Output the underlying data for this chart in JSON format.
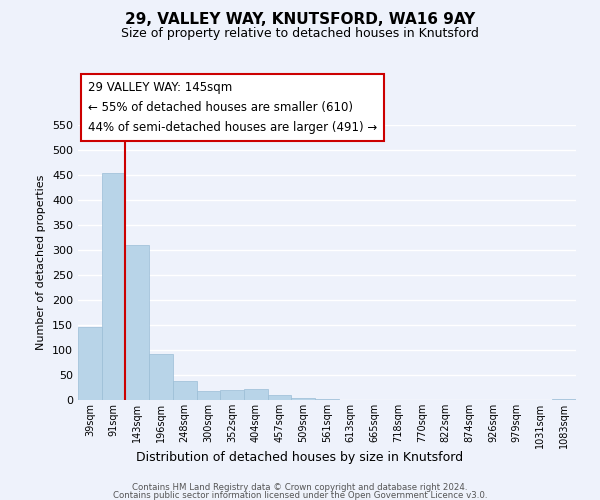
{
  "title": "29, VALLEY WAY, KNUTSFORD, WA16 9AY",
  "subtitle": "Size of property relative to detached houses in Knutsford",
  "xlabel": "Distribution of detached houses by size in Knutsford",
  "ylabel": "Number of detached properties",
  "categories": [
    "39sqm",
    "91sqm",
    "143sqm",
    "196sqm",
    "248sqm",
    "300sqm",
    "352sqm",
    "404sqm",
    "457sqm",
    "509sqm",
    "561sqm",
    "613sqm",
    "665sqm",
    "718sqm",
    "770sqm",
    "822sqm",
    "874sqm",
    "926sqm",
    "979sqm",
    "1031sqm",
    "1083sqm"
  ],
  "values": [
    147,
    455,
    310,
    93,
    38,
    18,
    20,
    22,
    10,
    5,
    2,
    1,
    0,
    0,
    0,
    0,
    0,
    0,
    0,
    0,
    2
  ],
  "bar_color": "#b8d4e8",
  "bar_edge_color": "#9bbdd6",
  "marker_color": "#cc0000",
  "annotation_title": "29 VALLEY WAY: 145sqm",
  "annotation_line1": "← 55% of detached houses are smaller (610)",
  "annotation_line2": "44% of semi-detached houses are larger (491) →",
  "annotation_box_color": "#ffffff",
  "annotation_box_edge": "#cc0000",
  "footer_line1": "Contains HM Land Registry data © Crown copyright and database right 2024.",
  "footer_line2": "Contains public sector information licensed under the Open Government Licence v3.0.",
  "ylim": [
    0,
    550
  ],
  "yticks": [
    0,
    50,
    100,
    150,
    200,
    250,
    300,
    350,
    400,
    450,
    500,
    550
  ],
  "bg_color": "#eef2fb",
  "grid_color": "#ffffff",
  "title_fontsize": 11,
  "subtitle_fontsize": 9
}
